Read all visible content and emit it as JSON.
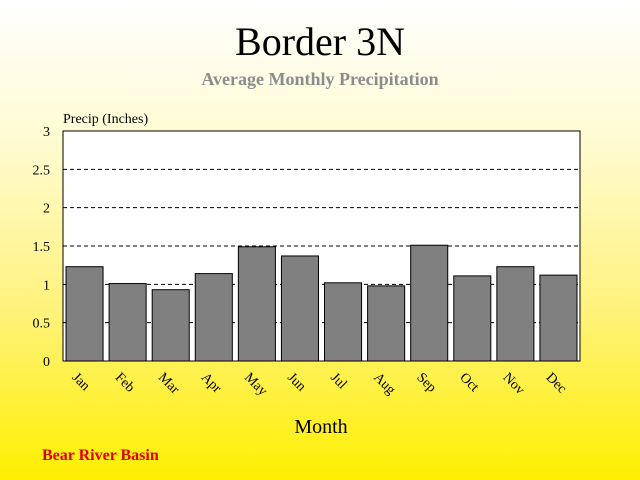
{
  "title": "Border 3N",
  "subtitle": "Average Monthly Precipitation",
  "footer": "Bear River Basin",
  "colors": {
    "subtitle": "#8c8c8c",
    "footer": "#e00000",
    "bar_fill": "#808080",
    "plot_background": "#ffffff"
  },
  "chart_data": {
    "type": "bar",
    "title": "Border 3N",
    "subtitle": "Average Monthly Precipitation",
    "xlabel": "Month",
    "ylabel": "Precip (Inches)",
    "categories": [
      "Jan",
      "Feb",
      "Mar",
      "Apr",
      "May",
      "Jun",
      "Jul",
      "Aug",
      "Sep",
      "Oct",
      "Nov",
      "Dec"
    ],
    "values": [
      1.23,
      1.01,
      0.93,
      1.14,
      1.49,
      1.37,
      1.02,
      0.98,
      1.51,
      1.11,
      1.23,
      1.12
    ],
    "ylim": [
      0,
      3
    ],
    "yticks": [
      0,
      0.5,
      1,
      1.5,
      2,
      2.5,
      3
    ],
    "ytick_labels": [
      "0",
      "0.5",
      "1",
      "1.5",
      "2",
      "2.5",
      "3"
    ],
    "grid": "dashed horizontal",
    "legend": "none"
  }
}
